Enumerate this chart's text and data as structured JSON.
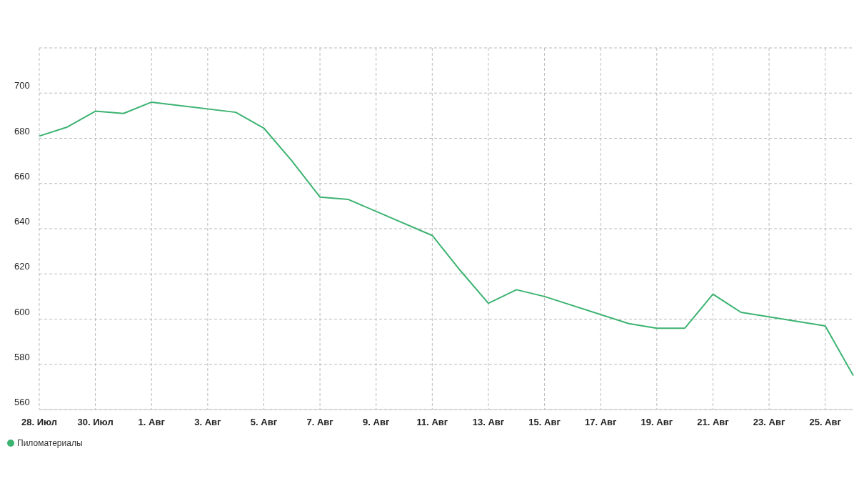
{
  "chart_data": {
    "type": "line",
    "x": [
      "--07-28",
      "--07-29",
      "--07-30",
      "--07-31",
      "--08-01",
      "--08-04",
      "--08-05",
      "--08-06",
      "--08-07",
      "--08-08",
      "--08-11",
      "--08-12",
      "--08-13",
      "--08-14",
      "--08-15",
      "--08-18",
      "--08-19",
      "--08-20",
      "--08-21",
      "--08-22",
      "--08-25",
      "--08-26"
    ],
    "series": [
      {
        "name": "Пиломатериалы",
        "color": "#3cb371",
        "values": [
          681,
          685,
          692,
          691,
          696,
          691.5,
          684.5,
          670,
          654,
          653,
          637,
          621.5,
          607,
          613,
          610,
          598,
          596,
          596,
          611,
          603,
          597,
          575
        ]
      }
    ],
    "xlim": [
      "--07-28",
      "--08-26"
    ],
    "xticks": [
      {
        "value": "--07-28",
        "label": "28. Июл"
      },
      {
        "value": "--07-30",
        "label": "30. Июл"
      },
      {
        "value": "--08-01",
        "label": "1. Авг"
      },
      {
        "value": "--08-03",
        "label": "3. Авг"
      },
      {
        "value": "--08-05",
        "label": "5. Авг"
      },
      {
        "value": "--08-07",
        "label": "7. Авг"
      },
      {
        "value": "--08-09",
        "label": "9. Авг"
      },
      {
        "value": "--08-11",
        "label": "11. Авг"
      },
      {
        "value": "--08-13",
        "label": "13. Авг"
      },
      {
        "value": "--08-15",
        "label": "15. Авг"
      },
      {
        "value": "--08-17",
        "label": "17. Авг"
      },
      {
        "value": "--08-19",
        "label": "19. Авг"
      },
      {
        "value": "--08-21",
        "label": "21. Авг"
      },
      {
        "value": "--08-23",
        "label": "23. Авг"
      },
      {
        "value": "--08-25",
        "label": "25. Авг"
      }
    ],
    "ylim": [
      560,
      720
    ],
    "yticks": [
      560,
      580,
      600,
      620,
      640,
      660,
      680,
      700,
      {
        "value": 720,
        "label": null
      }
    ],
    "grid": true,
    "legend": "bottom left",
    "marker": "none",
    "line_style": "solid"
  }
}
